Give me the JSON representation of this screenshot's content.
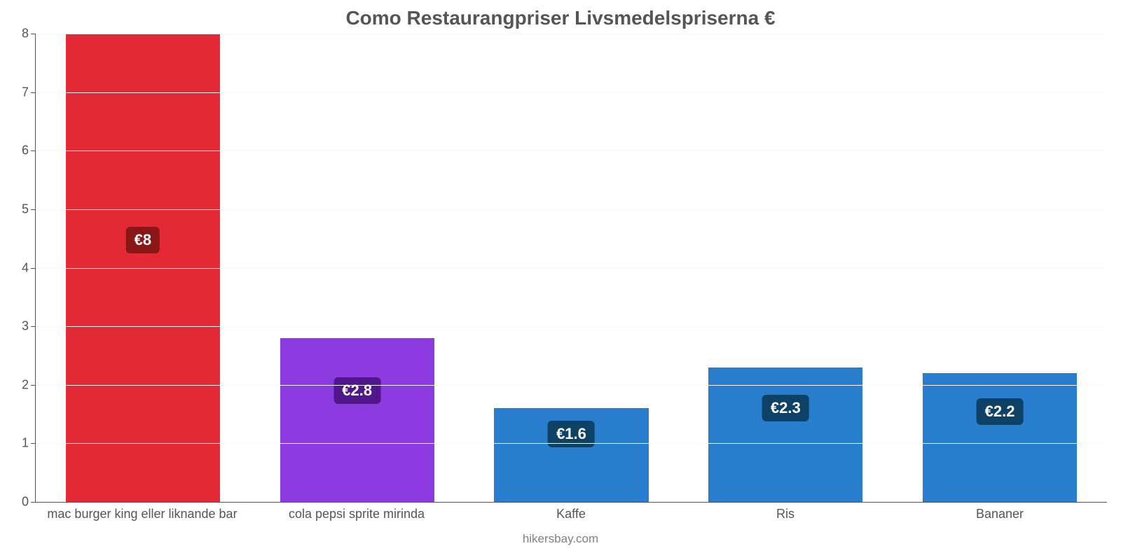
{
  "chart": {
    "type": "bar",
    "title": "Como Restaurangpriser Livsmedelspriserna €",
    "title_fontsize": 28,
    "title_color": "#555555",
    "axis_color": "#555555",
    "background_color": "#ffffff",
    "grid_color": "#fafafa",
    "y": {
      "min": 0,
      "max": 8,
      "tick_step": 1,
      "ticks": [
        0,
        1,
        2,
        3,
        4,
        5,
        6,
        7,
        8
      ]
    },
    "bar_width_ratio": 0.72,
    "bars": [
      {
        "category": "mac burger king eller liknande bar",
        "value": 8.0,
        "display": "€8",
        "bar_color": "#e32836",
        "label_bg": "#8a1616",
        "label_bottom_pct": 53
      },
      {
        "category": "cola pepsi sprite mirinda",
        "value": 2.8,
        "display": "€2.8",
        "bar_color": "#8c3be1",
        "label_bg": "#51168a",
        "label_bottom_pct": 60
      },
      {
        "category": "Kaffe",
        "value": 1.6,
        "display": "€1.6",
        "bar_color": "#287ecc",
        "label_bg": "#0d4166",
        "label_bottom_pct": 58
      },
      {
        "category": "Ris",
        "value": 2.3,
        "display": "€2.3",
        "bar_color": "#287ecc",
        "label_bg": "#0d4166",
        "label_bottom_pct": 60
      },
      {
        "category": "Bananer",
        "value": 2.2,
        "display": "€2.2",
        "bar_color": "#287ecc",
        "label_bg": "#0d4166",
        "label_bottom_pct": 60
      }
    ],
    "watermark": "hikersbay.com",
    "watermark_color": "#808080",
    "label_text_color": "#ffffff",
    "label_fontsize": 22,
    "xlabel_fontsize": 18,
    "ylabel_fontsize": 18
  }
}
